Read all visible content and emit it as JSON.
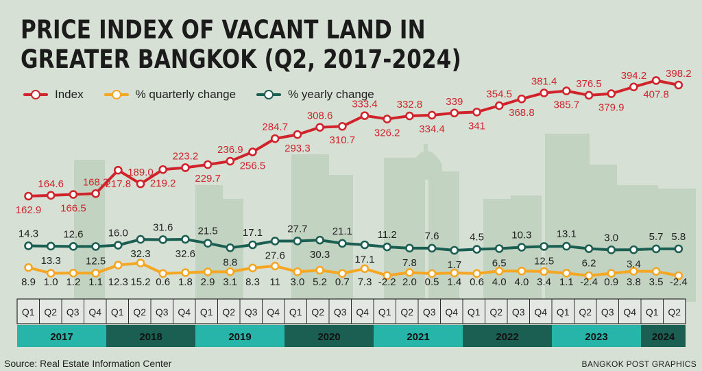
{
  "title_lines": [
    "PRICE INDEX OF VACANT LAND IN",
    "GREATER BANGKOK (Q2, 2017-2024)"
  ],
  "source": "Source: Real Estate Information Center",
  "credit": "BANGKOK POST GRAPHICS",
  "colors": {
    "index": "#d0232c",
    "quarterly": "#f5a623",
    "yearly": "#1b5e52",
    "label_dark": "#222222",
    "year_band_light": "#27b5a9",
    "year_band_dark": "#1b5e52",
    "background": "#d6e0d4",
    "skyline": "#c3d3c1"
  },
  "legend": [
    {
      "key": "index",
      "label": "Index"
    },
    {
      "key": "quarterly",
      "label": "% quarterly change"
    },
    {
      "key": "yearly",
      "label": "% yearly change"
    }
  ],
  "chart_data": {
    "type": "line",
    "title": "PRICE INDEX OF VACANT LAND IN GREATER BANGKOK (Q2, 2017-2024)",
    "x": [
      "2017 Q1",
      "2017 Q2",
      "2017 Q3",
      "2017 Q4",
      "2018 Q1",
      "2018 Q2",
      "2018 Q3",
      "2018 Q4",
      "2019 Q1",
      "2019 Q2",
      "2019 Q3",
      "2019 Q4",
      "2020 Q1",
      "2020 Q2",
      "2020 Q3",
      "2020 Q4",
      "2021 Q1",
      "2021 Q2",
      "2021 Q3",
      "2021 Q4",
      "2022 Q1",
      "2022 Q2",
      "2022 Q3",
      "2022 Q4",
      "2023 Q1",
      "2023 Q2",
      "2023 Q3",
      "2023 Q4",
      "2024 Q1",
      "2024 Q2"
    ],
    "quarters": [
      "Q1",
      "Q2",
      "Q3",
      "Q4",
      "Q1",
      "Q2",
      "Q3",
      "Q4",
      "Q1",
      "Q2",
      "Q3",
      "Q4",
      "Q1",
      "Q2",
      "Q3",
      "Q4",
      "Q1",
      "Q2",
      "Q3",
      "Q4",
      "Q1",
      "Q2",
      "Q3",
      "Q4",
      "Q1",
      "Q2",
      "Q3",
      "Q4",
      "Q1",
      "Q2"
    ],
    "years": [
      {
        "label": "2017",
        "quarters": 4
      },
      {
        "label": "2018",
        "quarters": 4
      },
      {
        "label": "2019",
        "quarters": 4
      },
      {
        "label": "2020",
        "quarters": 4
      },
      {
        "label": "2021",
        "quarters": 4
      },
      {
        "label": "2022",
        "quarters": 4
      },
      {
        "label": "2023",
        "quarters": 4
      },
      {
        "label": "2024",
        "quarters": 2
      }
    ],
    "series": [
      {
        "key": "index",
        "name": "Index",
        "values": [
          162.9,
          164.6,
          166.5,
          168.3,
          217.8,
          189.0,
          219.2,
          223.2,
          229.7,
          236.9,
          256.5,
          284.7,
          293.3,
          308.6,
          310.7,
          333.4,
          326.2,
          332.8,
          334.4,
          339,
          341,
          354.5,
          368.8,
          381.4,
          385.7,
          376.5,
          379.9,
          394.2,
          407.8,
          398.2
        ],
        "labels": [
          "162.9",
          "164.6",
          "166.5",
          "168.3",
          "217.8",
          "189.0",
          "219.2",
          "223.2",
          "229.7",
          "236.9",
          "256.5",
          "284.7",
          "293.3",
          "308.6",
          "310.7",
          "333.4",
          "326.2",
          "332.8",
          "334.4",
          "339",
          "341",
          "354.5",
          "368.8",
          "381.4",
          "385.7",
          "376.5",
          "379.9",
          "394.2",
          "407.8",
          "398.2"
        ]
      },
      {
        "key": "yearly",
        "name": "% yearly change",
        "values": [
          14.3,
          13.3,
          12.6,
          12.5,
          16.0,
          32.3,
          31.6,
          32.6,
          21.5,
          8.8,
          17.1,
          27.6,
          27.7,
          30.3,
          21.1,
          17.1,
          11.2,
          7.8,
          7.6,
          1.7,
          4.5,
          6.5,
          10.3,
          12.5,
          13.1,
          6.2,
          3.0,
          3.4,
          5.7,
          5.8
        ],
        "labels": [
          "14.3",
          "13.3",
          "12.6",
          "12.5",
          "16.0",
          "32.3",
          "31.6",
          "32.6",
          "21.5",
          "8.8",
          "17.1",
          "27.6",
          "27.7",
          "30.3",
          "21.1",
          "17.1",
          "11.2",
          "7.8",
          "7.6",
          "1.7",
          "4.5",
          "6.5",
          "10.3",
          "12.5",
          "13.1",
          "6.2",
          "3.0",
          "3.4",
          "5.7",
          "5.8"
        ]
      },
      {
        "key": "quarterly",
        "name": "% quarterly change",
        "values": [
          8.9,
          1.0,
          1.2,
          1.1,
          12.3,
          15.2,
          0.6,
          1.8,
          2.9,
          3.1,
          8.3,
          11,
          3.0,
          5.2,
          0.7,
          7.3,
          -2.2,
          2.0,
          0.5,
          1.4,
          0.6,
          4.0,
          4.0,
          3.4,
          1.1,
          -2.4,
          0.9,
          3.8,
          3.5,
          -2.4
        ],
        "labels": [
          "8.9",
          "1.0",
          "1.2",
          "1.1",
          "12.3",
          "15.2",
          "0.6",
          "1.8",
          "2.9",
          "3.1",
          "8.3",
          "11",
          "3.0",
          "5.2",
          "0.7",
          "7.3",
          "-2.2",
          "2.0",
          "0.5",
          "1.4",
          "0.6",
          "4.0",
          "4.0",
          "3.4",
          "1.1",
          "-2.4",
          "0.9",
          "3.8",
          "3.5",
          "-2.4"
        ]
      }
    ]
  }
}
